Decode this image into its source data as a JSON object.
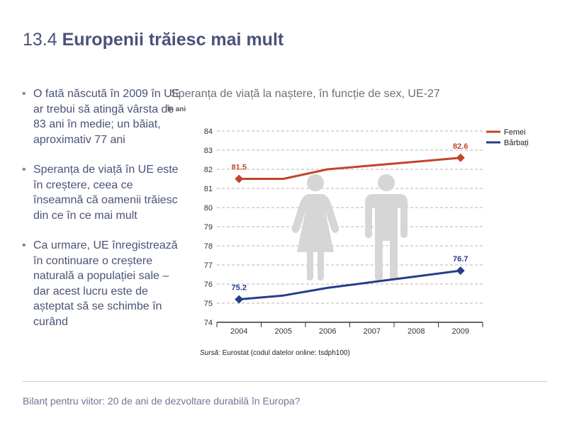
{
  "slide": {
    "number": "13.4",
    "heading": "Europenii trăiesc mai mult",
    "bullets": [
      "O fată născută în 2009 în UE ar trebui să atingă vârsta de 83 ani în medie; un băiat, aproximativ 77 ani",
      "Speranța de viață în UE este în creștere, ceea ce înseamnă că oamenii trăiesc din ce în ce mai mult",
      "Ca urmare, UE înregistrează în continuare o creștere naturală a populației sale – dar acest lucru este de așteptat să se schimbe în curând"
    ],
    "footer": "Bilanț pentru viitor: 20 de ani de dezvoltare durabilă în Europa?"
  },
  "source": {
    "label": "Sursă:",
    "text": " Eurostat (codul datelor online: tsdph100)"
  },
  "colors": {
    "women": "#c0462b",
    "men": "#243e8c",
    "figures": "#d6d6d6",
    "grid": "#b5b5b5"
  },
  "icons": [
    "woman-figure-icon",
    "man-figure-icon"
  ],
  "chart_data": {
    "type": "line",
    "title": "Speranța de viață la naștere, în funcție de sex, UE-27",
    "unit": "În ani",
    "x": [
      2004,
      2005,
      2006,
      2007,
      2008,
      2009
    ],
    "ylim": [
      74,
      84
    ],
    "yticks": [
      74,
      75,
      76,
      77,
      78,
      79,
      80,
      81,
      82,
      83,
      84
    ],
    "grid": true,
    "legend_position": "top-right",
    "series": [
      {
        "name": "Femei",
        "values": [
          81.5,
          81.5,
          82.0,
          82.2,
          82.4,
          82.6
        ],
        "labels": [
          "81.5",
          "",
          "",
          "",
          "",
          "82.6"
        ]
      },
      {
        "name": "Bărbați",
        "values": [
          75.2,
          75.4,
          75.8,
          76.1,
          76.4,
          76.7
        ],
        "labels": [
          "75.2",
          "",
          "",
          "",
          "",
          "76.7"
        ]
      }
    ]
  }
}
